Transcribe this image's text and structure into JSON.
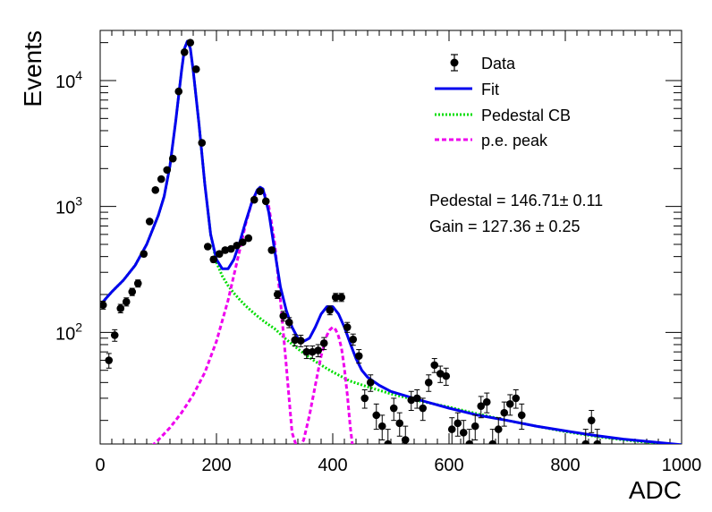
{
  "chart_data": {
    "type": "scatter",
    "xlabel": "ADC",
    "ylabel": "Events",
    "xlim": [
      0,
      1000
    ],
    "ylim": [
      13,
      25000
    ],
    "yscale": "log",
    "grid": false,
    "legend_position": "top-right",
    "xticks": [
      0,
      200,
      400,
      600,
      800,
      1000
    ],
    "yticks": [
      {
        "value": 100,
        "base": "10",
        "exp": "2"
      },
      {
        "value": 1000,
        "base": "10",
        "exp": "3"
      },
      {
        "value": 10000,
        "base": "10",
        "exp": "4"
      }
    ],
    "legend": [
      {
        "label": "Data",
        "style": "marker",
        "color": "#000000"
      },
      {
        "label": "Fit",
        "style": "solid",
        "color": "#0000ee"
      },
      {
        "label": "Pedestal CB",
        "style": "dotted",
        "color": "#00dd00"
      },
      {
        "label": "p.e. peak",
        "style": "dashed",
        "color": "#ee00ee"
      }
    ],
    "annotations": [
      "Pedestal = 146.71± 0.11",
      "Gain = 127.36 ± 0.25"
    ],
    "series": [
      {
        "name": "Data",
        "kind": "points",
        "color": "#000000",
        "points": [
          [
            5,
            165,
            12
          ],
          [
            15,
            60,
            8
          ],
          [
            25,
            95,
            10
          ],
          [
            35,
            155,
            12
          ],
          [
            45,
            175,
            13
          ],
          [
            55,
            210,
            14
          ],
          [
            65,
            245,
            16
          ],
          [
            75,
            420,
            20
          ],
          [
            85,
            760,
            27
          ],
          [
            95,
            1350,
            37
          ],
          [
            105,
            1650,
            41
          ],
          [
            115,
            1950,
            44
          ],
          [
            125,
            2400,
            49
          ],
          [
            135,
            8200,
            90
          ],
          [
            145,
            16800,
            130
          ],
          [
            155,
            20000,
            141
          ],
          [
            165,
            12300,
            111
          ],
          [
            175,
            3200,
            57
          ],
          [
            185,
            480,
            22
          ],
          [
            195,
            380,
            20
          ],
          [
            205,
            420,
            20
          ],
          [
            215,
            450,
            21
          ],
          [
            225,
            460,
            21
          ],
          [
            235,
            490,
            22
          ],
          [
            245,
            520,
            23
          ],
          [
            255,
            560,
            24
          ],
          [
            265,
            1130,
            34
          ],
          [
            275,
            1320,
            36
          ],
          [
            285,
            1100,
            33
          ],
          [
            295,
            450,
            21
          ],
          [
            305,
            200,
            14
          ],
          [
            315,
            135,
            12
          ],
          [
            325,
            120,
            11
          ],
          [
            335,
            87,
            9
          ],
          [
            345,
            86,
            9
          ],
          [
            355,
            70,
            8
          ],
          [
            365,
            70,
            8
          ],
          [
            375,
            72,
            8
          ],
          [
            385,
            82,
            9
          ],
          [
            395,
            150,
            12
          ],
          [
            405,
            190,
            14
          ],
          [
            415,
            190,
            14
          ],
          [
            425,
            110,
            10
          ],
          [
            435,
            88,
            9
          ],
          [
            445,
            65,
            8
          ],
          [
            455,
            30,
            5
          ],
          [
            465,
            40,
            6
          ],
          [
            475,
            22,
            5
          ],
          [
            485,
            18,
            4
          ],
          [
            495,
            13,
            4
          ],
          [
            505,
            25,
            5
          ],
          [
            515,
            19,
            4
          ],
          [
            525,
            14,
            4
          ],
          [
            535,
            29,
            5
          ],
          [
            545,
            30,
            5
          ],
          [
            555,
            25,
            5
          ],
          [
            565,
            40,
            6
          ],
          [
            575,
            55,
            7
          ],
          [
            585,
            47,
            7
          ],
          [
            595,
            45,
            7
          ],
          [
            605,
            17,
            4
          ],
          [
            615,
            19,
            4
          ],
          [
            625,
            16,
            4
          ],
          [
            635,
            13,
            4
          ],
          [
            645,
            18,
            4
          ],
          [
            655,
            26,
            5
          ],
          [
            665,
            28,
            5
          ],
          [
            675,
            13,
            4
          ],
          [
            685,
            17,
            4
          ],
          [
            695,
            23,
            5
          ],
          [
            705,
            27,
            5
          ],
          [
            715,
            30,
            5
          ],
          [
            725,
            22,
            5
          ],
          [
            835,
            13,
            4
          ],
          [
            845,
            20,
            4
          ],
          [
            855,
            13,
            4
          ]
        ]
      },
      {
        "name": "Fit",
        "kind": "line",
        "color": "#0000ee",
        "x": [
          0,
          20,
          40,
          60,
          80,
          100,
          110,
          120,
          130,
          140,
          145,
          150,
          155,
          160,
          170,
          180,
          190,
          200,
          210,
          220,
          230,
          240,
          250,
          260,
          270,
          275,
          280,
          290,
          300,
          310,
          320,
          330,
          340,
          350,
          360,
          370,
          380,
          390,
          400,
          410,
          420,
          430,
          440,
          450,
          460,
          480,
          500,
          550,
          600,
          650,
          700,
          750,
          800,
          850,
          900,
          950,
          1000
        ],
        "y": [
          165,
          210,
          260,
          340,
          500,
          850,
          1200,
          2100,
          4800,
          12000,
          18000,
          20500,
          18000,
          12000,
          4500,
          1500,
          600,
          380,
          320,
          320,
          380,
          520,
          750,
          1050,
          1350,
          1420,
          1380,
          900,
          450,
          230,
          150,
          110,
          90,
          85,
          90,
          110,
          140,
          160,
          160,
          140,
          110,
          82,
          62,
          50,
          44,
          38,
          34,
          29,
          25,
          22,
          20,
          18,
          16.5,
          15.2,
          14.2,
          13.5,
          12.8
        ]
      },
      {
        "name": "Pedestal CB",
        "kind": "line",
        "color": "#00dd00",
        "x": [
          0,
          20,
          40,
          60,
          80,
          100,
          110,
          120,
          130,
          140,
          145,
          150,
          155,
          160,
          170,
          180,
          190,
          200,
          210,
          220,
          230,
          240,
          250,
          260,
          270,
          280,
          290,
          300,
          320,
          340,
          360,
          380,
          400,
          430,
          460,
          500,
          550,
          600,
          650,
          700,
          750,
          800,
          850,
          900,
          950,
          1000
        ],
        "y": [
          165,
          210,
          260,
          340,
          500,
          850,
          1200,
          2100,
          4800,
          12000,
          18000,
          20500,
          18000,
          12000,
          4500,
          1500,
          600,
          360,
          280,
          235,
          205,
          182,
          163,
          148,
          135,
          124,
          115,
          107,
          88,
          74,
          63,
          55,
          48.5,
          41,
          37,
          32.5,
          28.5,
          25.5,
          22.5,
          20,
          18,
          16.3,
          15,
          14,
          13.3,
          12.8
        ]
      },
      {
        "name": "p.e. peak",
        "kind": "line",
        "color": "#ee00ee",
        "x": [
          80,
          100,
          120,
          140,
          160,
          180,
          200,
          220,
          240,
          250,
          260,
          265,
          270,
          275,
          280,
          285,
          290,
          300,
          310,
          320,
          330,
          340,
          350,
          360,
          370,
          380,
          390,
          395,
          400,
          405,
          410,
          415,
          420,
          425,
          430,
          435,
          440
        ],
        "y": [
          11.5,
          14,
          17.5,
          23,
          32,
          48,
          85,
          180,
          450,
          720,
          1050,
          1200,
          1300,
          1340,
          1310,
          1200,
          1000,
          520,
          180,
          55,
          16,
          11.5,
          14,
          22,
          38,
          65,
          95,
          105,
          110,
          105,
          93,
          75,
          52,
          32,
          18,
          11.5,
          8
        ]
      }
    ]
  }
}
